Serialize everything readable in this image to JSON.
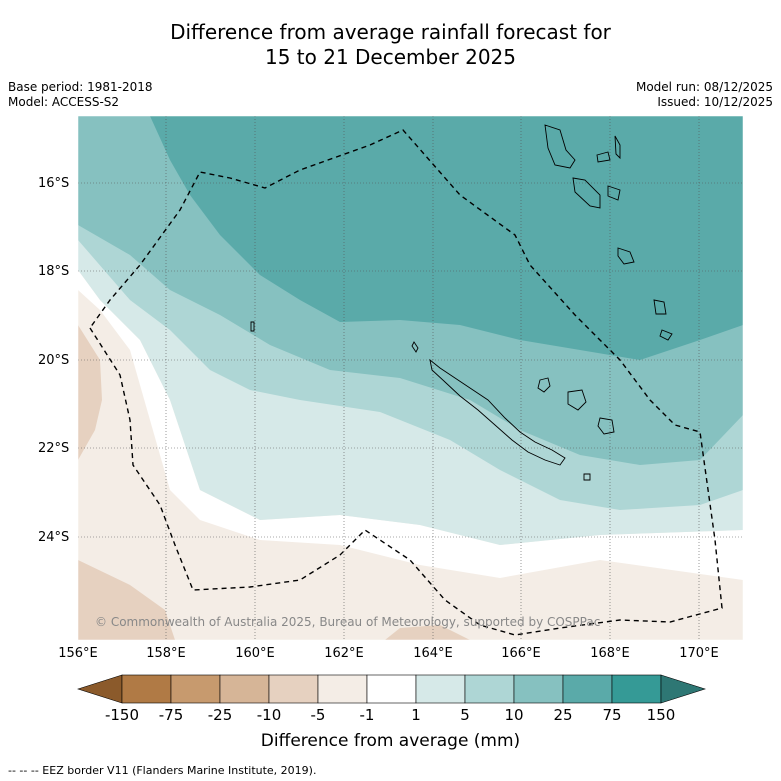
{
  "title_line1": "Difference from average rainfall forecast for",
  "title_line2": "15 to 21 December 2025",
  "meta_left": [
    "Base period: 1981-2018",
    "Model: ACCESS-S2"
  ],
  "meta_right": [
    "Model run: 08/12/2025",
    "Issued: 10/12/2025"
  ],
  "y_ticks": [
    "16°S",
    "18°S",
    "20°S",
    "22°S",
    "24°S"
  ],
  "x_ticks": [
    "156°E",
    "158°E",
    "160°E",
    "162°E",
    "164°E",
    "166°E",
    "168°E",
    "170°E"
  ],
  "copyright": "© Commonwealth of Australia 2025, Bureau of Meteorology, supported by COSPPac",
  "colorbar": {
    "title": "Difference from average (mm)",
    "labels": [
      "-150",
      "-75",
      "-25",
      "-10",
      "-5",
      "-1",
      "1",
      "5",
      "10",
      "25",
      "75",
      "150"
    ],
    "colors": [
      "#8b5a2b",
      "#b07a45",
      "#c79a6e",
      "#d6b597",
      "#e6d1c0",
      "#f4ede6",
      "#ffffff",
      "#d6e9e8",
      "#aed6d5",
      "#86c1c0",
      "#5aaaa9",
      "#359a96",
      "#2e7774"
    ]
  },
  "footer": "--  --  -- EEZ border V11 (Flanders Marine Institute, 2019)."
}
